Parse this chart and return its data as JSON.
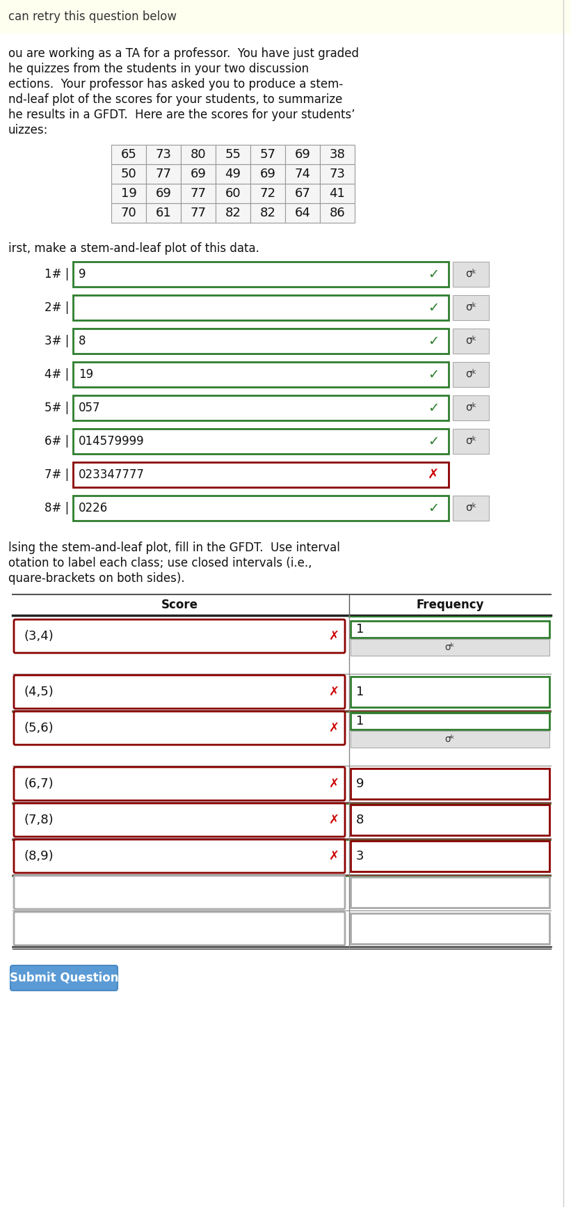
{
  "bg_top": "#fffff0",
  "bg_main": "#ffffff",
  "title_text": "can retry this question below",
  "para1_lines": [
    "ou are working as a TA for a professor.  You have just graded",
    "he quizzes from the students in your two discussion",
    "ections.  Your professor has asked you to produce a stem-",
    "nd-leaf plot of the scores for your students, to summarize",
    "he results in a GFDT.  Here are the scores for your students’",
    "uizzes:"
  ],
  "table_data": [
    [
      65,
      73,
      80,
      55,
      57,
      69,
      38
    ],
    [
      50,
      77,
      69,
      49,
      69,
      74,
      73
    ],
    [
      19,
      69,
      77,
      60,
      72,
      67,
      41
    ],
    [
      70,
      61,
      77,
      82,
      82,
      64,
      86
    ]
  ],
  "stem_label": "irst, make a stem-and-leaf plot of this data.",
  "stem_rows": [
    {
      "stem": "1#",
      "leaves": "9",
      "correct": true,
      "has_sigma": true
    },
    {
      "stem": "2#",
      "leaves": "",
      "correct": true,
      "has_sigma": true
    },
    {
      "stem": "3#",
      "leaves": "8",
      "correct": true,
      "has_sigma": true
    },
    {
      "stem": "4#",
      "leaves": "19",
      "correct": true,
      "has_sigma": true
    },
    {
      "stem": "5#",
      "leaves": "057",
      "correct": true,
      "has_sigma": true
    },
    {
      "stem": "6#",
      "leaves": "014579999",
      "correct": true,
      "has_sigma": true
    },
    {
      "stem": "7#",
      "leaves": "023347777",
      "correct": false,
      "has_sigma": false
    },
    {
      "stem": "8#",
      "leaves": "0226",
      "correct": true,
      "has_sigma": true
    }
  ],
  "gfdt_intro": [
    "lsing the stem-and-leaf plot, fill in the GFDT.  Use interval",
    "otation to label each class; use closed intervals (i.e.,",
    "quare-brackets on both sides)."
  ],
  "gfdt_rows": [
    {
      "score": "(3,4)",
      "freq": "1",
      "score_ok": false,
      "freq_ok": true,
      "has_sigma": true
    },
    {
      "score": "(4,5)",
      "freq": "1",
      "score_ok": false,
      "freq_ok": true,
      "has_sigma": false
    },
    {
      "score": "(5,6)",
      "freq": "1",
      "score_ok": false,
      "freq_ok": true,
      "has_sigma": true
    },
    {
      "score": "(6,7)",
      "freq": "9",
      "score_ok": false,
      "freq_ok": false,
      "has_sigma": false
    },
    {
      "score": "(7,8)",
      "freq": "8",
      "score_ok": false,
      "freq_ok": false,
      "has_sigma": false
    },
    {
      "score": "(8,9)",
      "freq": "3",
      "score_ok": false,
      "freq_ok": false,
      "has_sigma": false
    },
    {
      "score": "",
      "freq": "",
      "score_ok": false,
      "freq_ok": false,
      "has_sigma": false
    },
    {
      "score": "",
      "freq": "",
      "score_ok": false,
      "freq_ok": false,
      "has_sigma": false
    }
  ],
  "submit_text": "Submit Question",
  "submit_color": "#5b9bd5",
  "color_green": "#2e7d2e",
  "color_red": "#8b0000",
  "color_gray_bg": "#e0e0e0",
  "color_light_gray": "#aaaaaa",
  "fs": 12
}
